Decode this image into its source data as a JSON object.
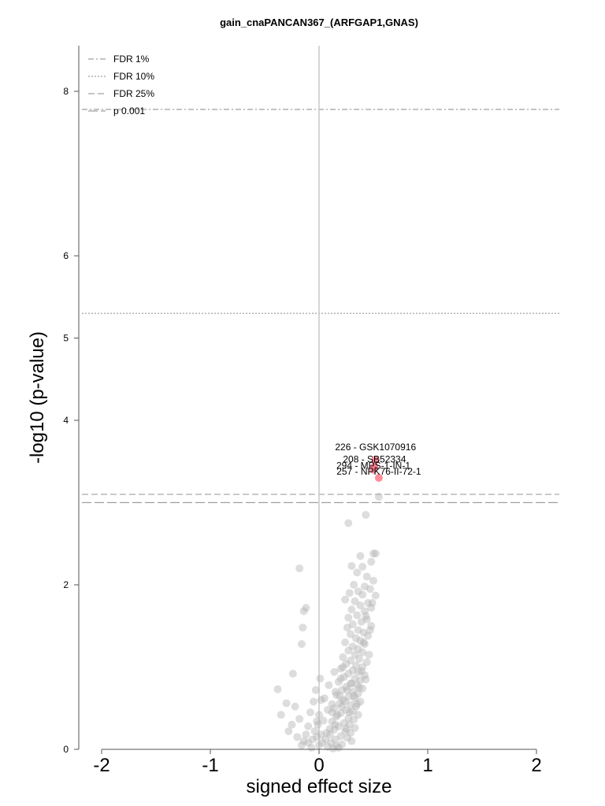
{
  "chart_data": {
    "type": "scatter",
    "title": "gain_cnaPANCAN367_(ARFGAP1,GNAS)",
    "xlabel": "signed effect size",
    "ylabel": "-log10 (p-value)",
    "xlim": [
      -2.2,
      2.2
    ],
    "ylim": [
      0,
      8.6
    ],
    "x_ticks": [
      "-2",
      "-1",
      "0",
      "1",
      "2"
    ],
    "y_ticks": [
      "0",
      "2",
      "4",
      "5",
      "6",
      "8"
    ],
    "colors": {
      "background_point": "#b4b4b4",
      "highlight_point": "#ff6e82",
      "threshold_line": "#a0a0a0",
      "zero_line": "#c8c8c8",
      "axis": "#555555"
    },
    "thresholds": [
      {
        "label": "FDR 1%",
        "y": 7.78,
        "style": "dashdot"
      },
      {
        "label": "FDR 10%",
        "y": 5.3,
        "style": "dotted"
      },
      {
        "label": "FDR 25%",
        "y": 3.1,
        "style": "dashed"
      },
      {
        "label": "p 0.001",
        "y": 3.0,
        "style": "longdash"
      }
    ],
    "legend_position": "top-left",
    "highlighted": [
      {
        "label": "226 - GSK1070916",
        "x": 0.52,
        "y": 3.52
      },
      {
        "label": "208 - SB52334",
        "x": 0.51,
        "y": 3.44
      },
      {
        "label": "294 - MPS-1-IN-1",
        "x": 0.5,
        "y": 3.4
      },
      {
        "label": "257 - NPK76-II-72-1",
        "x": 0.55,
        "y": 3.3
      }
    ],
    "points": [
      [
        0.55,
        3.07
      ],
      [
        0.43,
        2.85
      ],
      [
        0.27,
        2.75
      ],
      [
        0.5,
        2.38
      ],
      [
        0.52,
        2.38
      ],
      [
        0.38,
        2.35
      ],
      [
        0.48,
        2.28
      ],
      [
        0.3,
        2.23
      ],
      [
        0.4,
        2.22
      ],
      [
        0.35,
        2.15
      ],
      [
        0.44,
        2.1
      ],
      [
        0.5,
        2.05
      ],
      [
        0.32,
        2.0
      ],
      [
        0.42,
        1.98
      ],
      [
        0.47,
        1.95
      ],
      [
        0.36,
        1.92
      ],
      [
        0.28,
        1.9
      ],
      [
        0.4,
        1.88
      ],
      [
        0.52,
        1.87
      ],
      [
        0.24,
        1.82
      ],
      [
        0.33,
        1.8
      ],
      [
        0.45,
        1.78
      ],
      [
        0.38,
        1.75
      ],
      [
        0.48,
        1.72
      ],
      [
        0.3,
        1.7
      ],
      [
        0.42,
        1.68
      ],
      [
        0.35,
        1.63
      ],
      [
        0.27,
        1.6
      ],
      [
        0.44,
        1.58
      ],
      [
        0.39,
        1.55
      ],
      [
        0.31,
        1.52
      ],
      [
        0.48,
        1.5
      ],
      [
        0.26,
        1.48
      ],
      [
        0.36,
        1.45
      ],
      [
        0.41,
        1.42
      ],
      [
        0.29,
        1.4
      ],
      [
        0.45,
        1.38
      ],
      [
        0.34,
        1.35
      ],
      [
        0.38,
        1.32
      ],
      [
        0.24,
        1.3
      ],
      [
        0.42,
        1.28
      ],
      [
        0.31,
        1.25
      ],
      [
        0.36,
        1.22
      ],
      [
        0.27,
        1.2
      ],
      [
        0.4,
        1.18
      ],
      [
        0.33,
        1.15
      ],
      [
        0.22,
        1.12
      ],
      [
        0.37,
        1.1
      ],
      [
        0.29,
        1.08
      ],
      [
        0.44,
        1.06
      ],
      [
        0.25,
        1.04
      ],
      [
        0.34,
        1.02
      ],
      [
        0.4,
        1.0
      ],
      [
        0.2,
        0.98
      ],
      [
        0.31,
        0.96
      ],
      [
        0.36,
        0.94
      ],
      [
        0.27,
        0.92
      ],
      [
        0.42,
        0.9
      ],
      [
        0.23,
        0.88
      ],
      [
        0.33,
        0.86
      ],
      [
        0.38,
        0.84
      ],
      [
        0.18,
        0.82
      ],
      [
        0.29,
        0.8
      ],
      [
        0.35,
        0.78
      ],
      [
        0.25,
        0.76
      ],
      [
        0.4,
        0.74
      ],
      [
        0.21,
        0.72
      ],
      [
        0.31,
        0.7
      ],
      [
        0.36,
        0.68
      ],
      [
        0.16,
        0.66
      ],
      [
        0.27,
        0.64
      ],
      [
        0.33,
        0.62
      ],
      [
        0.22,
        0.6
      ],
      [
        0.38,
        0.58
      ],
      [
        0.19,
        0.56
      ],
      [
        0.29,
        0.54
      ],
      [
        0.34,
        0.52
      ],
      [
        0.14,
        0.5
      ],
      [
        0.25,
        0.48
      ],
      [
        0.31,
        0.46
      ],
      [
        0.2,
        0.44
      ],
      [
        0.36,
        0.42
      ],
      [
        0.16,
        0.4
      ],
      [
        0.27,
        0.38
      ],
      [
        0.32,
        0.36
      ],
      [
        0.12,
        0.34
      ],
      [
        0.23,
        0.32
      ],
      [
        0.28,
        0.3
      ],
      [
        0.18,
        0.28
      ],
      [
        0.33,
        0.26
      ],
      [
        0.14,
        0.24
      ],
      [
        0.24,
        0.22
      ],
      [
        0.29,
        0.2
      ],
      [
        0.1,
        0.18
      ],
      [
        0.2,
        0.16
      ],
      [
        0.26,
        0.14
      ],
      [
        0.15,
        0.12
      ],
      [
        0.3,
        0.1
      ],
      [
        0.11,
        0.08
      ],
      [
        0.21,
        0.06
      ],
      [
        0.16,
        0.04
      ],
      [
        0.08,
        0.03
      ],
      [
        0.18,
        0.02
      ],
      [
        0.13,
        0.01
      ],
      [
        0.06,
        0.12
      ],
      [
        0.1,
        0.25
      ],
      [
        0.04,
        0.35
      ],
      [
        0.08,
        0.48
      ],
      [
        0.02,
        0.6
      ],
      [
        0.12,
        0.55
      ],
      [
        0.07,
        0.2
      ],
      [
        0.03,
        0.08
      ],
      [
        0.0,
        0.05
      ],
      [
        -0.02,
        0.15
      ],
      [
        0.05,
        0.62
      ],
      [
        0.15,
        0.7
      ],
      [
        0.09,
        0.78
      ],
      [
        0.2,
        0.86
      ],
      [
        0.14,
        0.94
      ],
      [
        0.22,
        1.0
      ],
      [
        0.17,
        0.42
      ],
      [
        0.21,
        0.52
      ],
      [
        0.24,
        0.58
      ],
      [
        0.19,
        0.65
      ],
      [
        0.26,
        0.72
      ],
      [
        0.3,
        0.8
      ],
      [
        0.12,
        0.45
      ],
      [
        0.15,
        0.3
      ],
      [
        0.25,
        0.25
      ],
      [
        0.28,
        0.45
      ],
      [
        0.35,
        0.55
      ],
      [
        0.32,
        0.65
      ],
      [
        0.37,
        0.75
      ],
      [
        0.43,
        0.85
      ],
      [
        0.39,
        0.95
      ],
      [
        0.46,
        1.15
      ],
      [
        0.41,
        1.3
      ],
      [
        0.47,
        1.45
      ],
      [
        0.43,
        1.62
      ],
      [
        0.49,
        1.78
      ],
      [
        -0.18,
        2.2
      ],
      [
        -0.12,
        1.72
      ],
      [
        -0.14,
        1.68
      ],
      [
        -0.15,
        1.48
      ],
      [
        -0.16,
        1.28
      ],
      [
        -0.24,
        0.92
      ],
      [
        -0.38,
        0.73
      ],
      [
        -0.35,
        0.42
      ],
      [
        -0.3,
        0.56
      ],
      [
        -0.22,
        0.52
      ],
      [
        -0.18,
        0.37
      ],
      [
        -0.25,
        0.3
      ],
      [
        -0.2,
        0.15
      ],
      [
        -0.28,
        0.22
      ],
      [
        -0.16,
        0.05
      ],
      [
        -0.1,
        0.08
      ],
      [
        -0.06,
        0.12
      ],
      [
        -0.04,
        0.22
      ],
      [
        -0.02,
        0.34
      ],
      [
        -0.08,
        0.45
      ],
      [
        -0.05,
        0.58
      ],
      [
        -0.03,
        0.72
      ],
      [
        0.01,
        0.86
      ],
      [
        -0.1,
        0.28
      ],
      [
        -0.12,
        0.18
      ],
      [
        -0.07,
        0.02
      ],
      [
        -0.14,
        0.1
      ],
      [
        0.0,
        0.42
      ],
      [
        0.02,
        0.18
      ],
      [
        -0.01,
        0.3
      ]
    ]
  }
}
